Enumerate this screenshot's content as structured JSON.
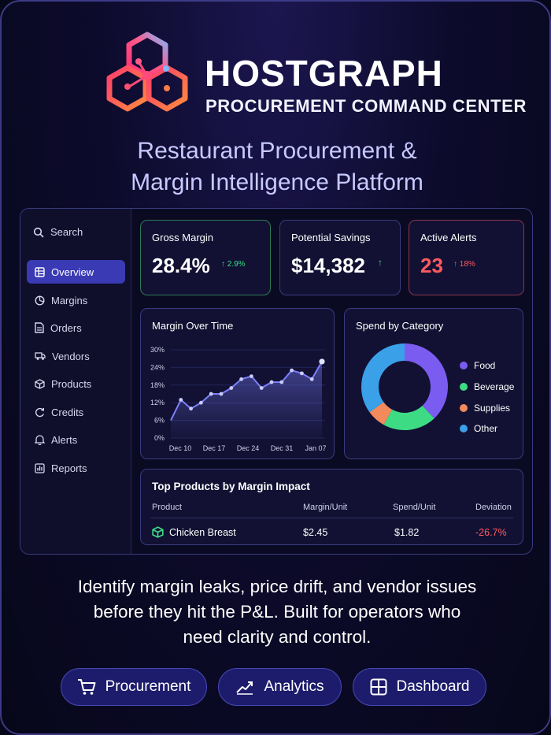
{
  "brand": {
    "name": "HOSTGRAPH",
    "subtitle": "PROCUREMENT COMMAND CENTER",
    "headline_line1": "Restaurant Procurement &",
    "headline_line2": "Margin Intelligence Platform"
  },
  "sidebar": {
    "search_label": "Search",
    "items": [
      {
        "label": "Overview",
        "icon": "grid-icon",
        "active": true
      },
      {
        "label": "Margins",
        "icon": "pie-icon"
      },
      {
        "label": "Orders",
        "icon": "document-icon"
      },
      {
        "label": "Vendors",
        "icon": "truck-icon"
      },
      {
        "label": "Products",
        "icon": "box-icon"
      },
      {
        "label": "Credits",
        "icon": "refresh-icon"
      },
      {
        "label": "Alerts",
        "icon": "bell-icon"
      },
      {
        "label": "Reports",
        "icon": "bar-chart-icon"
      }
    ]
  },
  "kpis": [
    {
      "title": "Gross Margin",
      "value": "28.4%",
      "delta": "↑ 2.9%",
      "color": "#3ddc84"
    },
    {
      "title": "Potential Savings",
      "value": "$14,382",
      "delta": "↑",
      "color": "#3ddc84"
    },
    {
      "title": "Active Alerts",
      "value": "23",
      "delta": "↑ 18%",
      "color": "#ff5a5f"
    }
  ],
  "chart_data": [
    {
      "type": "area",
      "title": "Margin Over Time",
      "x_ticks": [
        "Dec 10",
        "Dec 17",
        "Dec 24",
        "Dec 31",
        "Jan 07"
      ],
      "y_ticks": [
        "0%",
        "6%",
        "12%",
        "18%",
        "24%",
        "30%"
      ],
      "ylim": [
        0,
        30
      ],
      "values": [
        6,
        13,
        10,
        12,
        15,
        15,
        17,
        20,
        21,
        17,
        19,
        19,
        23,
        22,
        20,
        26
      ],
      "color": "#7b80ff"
    },
    {
      "type": "pie",
      "title": "Spend by Category",
      "labels": [
        "Food",
        "Beverage",
        "Supplies",
        "Other"
      ],
      "values": [
        38,
        20,
        7,
        35
      ],
      "colors": [
        "#7b5cf0",
        "#3ddc84",
        "#f28a5c",
        "#3aa0e8"
      ]
    }
  ],
  "table": {
    "title": "Top Products by Margin Impact",
    "headers": [
      "Product",
      "Margin/Unit",
      "Spend/Unit",
      "Deviation"
    ],
    "rows": [
      {
        "product": "Chicken Breast",
        "margin": "$2.45",
        "spend": "$1.82",
        "deviation": "-26.7%"
      }
    ]
  },
  "tagline": {
    "line1": "Identify margin leaks, price drift, and vendor issues",
    "line2": "before they hit the P&L. Built for operators who",
    "line3": "need clarity and control."
  },
  "buttons": [
    {
      "label": "Procurement",
      "icon": "cart-icon"
    },
    {
      "label": "Analytics",
      "icon": "trend-icon"
    },
    {
      "label": "Dashboard",
      "icon": "dashboard-icon"
    }
  ]
}
